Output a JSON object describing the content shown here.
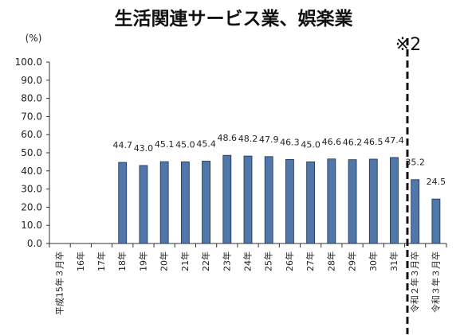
{
  "chart_data": {
    "type": "bar",
    "title": "生活関連サービス業、娯楽業",
    "unit": "(%)",
    "ylim": [
      0,
      100
    ],
    "yticks": [
      "0.0",
      "10.0",
      "20.0",
      "30.0",
      "40.0",
      "50.0",
      "60.0",
      "70.0",
      "80.0",
      "90.0",
      "100.0"
    ],
    "categories": [
      "平成15年３月卒",
      "16年",
      "17年",
      "18年",
      "19年",
      "20年",
      "21年",
      "22年",
      "23年",
      "24年",
      "25年",
      "26年",
      "27年",
      "28年",
      "29年",
      "30年",
      "31年",
      "令和２年３月卒",
      "令和３年３月卒"
    ],
    "values": [
      null,
      null,
      null,
      44.7,
      43.0,
      45.1,
      45.0,
      45.4,
      48.6,
      48.2,
      47.9,
      46.3,
      45.0,
      46.6,
      46.2,
      46.5,
      47.4,
      35.2,
      24.5
    ],
    "value_labels": [
      "",
      "",
      "",
      "44.7",
      "43.0",
      "45.1",
      "45.0",
      "45.4",
      "48.6",
      "48.2",
      "47.9",
      "46.3",
      "45.0",
      "46.6",
      "46.2",
      "46.5",
      "47.4",
      "35.2",
      "24.5"
    ],
    "bar_color": "#4F77AA",
    "bar_edge_color": "#1F2F4F",
    "annotation": "※2",
    "annotation_divider": "dashed vertical line between 31年 and 令和２年３月卒",
    "grid": false,
    "legend": "none"
  }
}
